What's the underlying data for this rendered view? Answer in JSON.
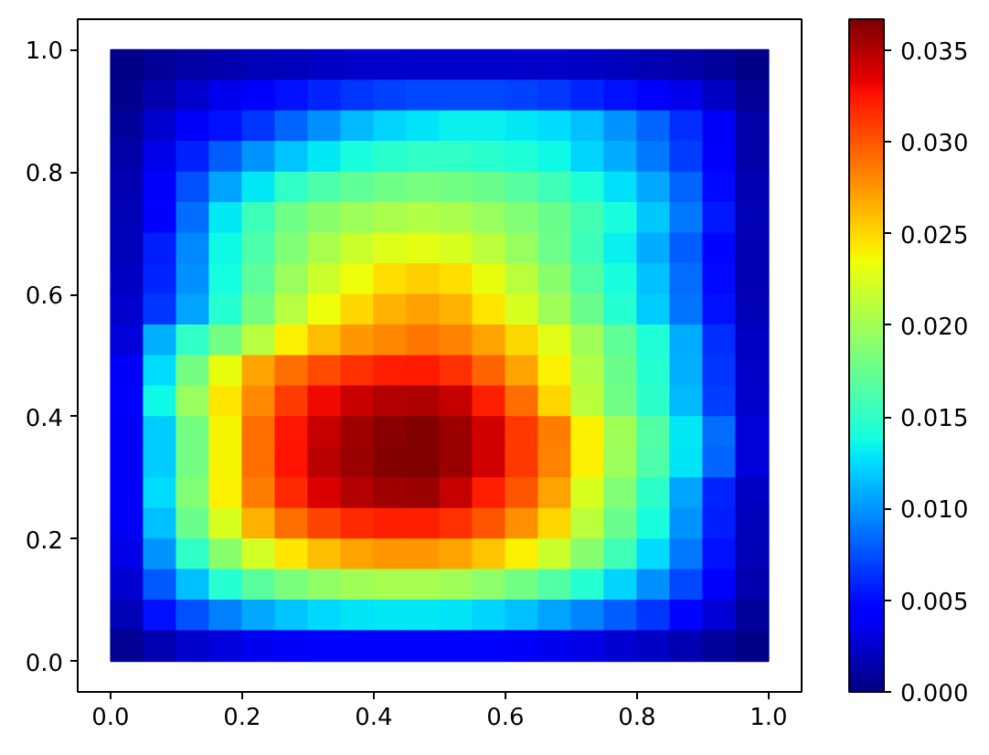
{
  "chart_data": {
    "type": "heatmap",
    "x": [
      0.025,
      0.075,
      0.125,
      0.175,
      0.225,
      0.275,
      0.325,
      0.375,
      0.425,
      0.475,
      0.525,
      0.575,
      0.625,
      0.675,
      0.725,
      0.775,
      0.825,
      0.875,
      0.925,
      0.975
    ],
    "y": [
      0.975,
      0.925,
      0.875,
      0.825,
      0.775,
      0.725,
      0.675,
      0.625,
      0.575,
      0.525,
      0.475,
      0.425,
      0.375,
      0.325,
      0.275,
      0.225,
      0.175,
      0.125,
      0.075,
      0.025
    ],
    "cells": [
      [
        0.0003,
        0.0008,
        0.0012,
        0.0015,
        0.0018,
        0.002,
        0.0022,
        0.0023,
        0.0024,
        0.0025,
        0.0025,
        0.0025,
        0.0024,
        0.0023,
        0.0022,
        0.002,
        0.0017,
        0.0013,
        0.0009,
        0.0003
      ],
      [
        0.0005,
        0.0015,
        0.0025,
        0.0035,
        0.0045,
        0.0052,
        0.006,
        0.0065,
        0.007,
        0.0072,
        0.0073,
        0.0072,
        0.007,
        0.0066,
        0.006,
        0.0053,
        0.0045,
        0.0035,
        0.0022,
        0.0008
      ],
      [
        0.001,
        0.0025,
        0.004,
        0.0052,
        0.0065,
        0.0082,
        0.0098,
        0.0112,
        0.0122,
        0.0128,
        0.0132,
        0.0132,
        0.013,
        0.0125,
        0.0115,
        0.01,
        0.0083,
        0.0063,
        0.004,
        0.0013
      ],
      [
        0.0013,
        0.0035,
        0.0058,
        0.008,
        0.01,
        0.0117,
        0.013,
        0.014,
        0.0147,
        0.015,
        0.015,
        0.0147,
        0.0142,
        0.0135,
        0.0123,
        0.0108,
        0.009,
        0.0068,
        0.0042,
        0.0014
      ],
      [
        0.0016,
        0.0043,
        0.0075,
        0.0105,
        0.013,
        0.015,
        0.0163,
        0.0172,
        0.0178,
        0.0181,
        0.018,
        0.0175,
        0.0167,
        0.0157,
        0.0143,
        0.0127,
        0.0107,
        0.0082,
        0.005,
        0.0017
      ],
      [
        0.0018,
        0.0045,
        0.0085,
        0.013,
        0.0155,
        0.0178,
        0.019,
        0.0198,
        0.0204,
        0.0207,
        0.0204,
        0.0196,
        0.0186,
        0.0175,
        0.0158,
        0.014,
        0.0118,
        0.009,
        0.0055,
        0.0018
      ],
      [
        0.002,
        0.0057,
        0.0095,
        0.0135,
        0.0163,
        0.0186,
        0.0205,
        0.0218,
        0.0227,
        0.023,
        0.0225,
        0.0212,
        0.0195,
        0.0177,
        0.0155,
        0.0133,
        0.0108,
        0.008,
        0.0048,
        0.0016
      ],
      [
        0.0022,
        0.006,
        0.0098,
        0.0138,
        0.017,
        0.0197,
        0.0218,
        0.0235,
        0.0247,
        0.0253,
        0.0248,
        0.0232,
        0.0212,
        0.019,
        0.0165,
        0.014,
        0.0115,
        0.0085,
        0.005,
        0.0017
      ],
      [
        0.0025,
        0.0065,
        0.0105,
        0.0145,
        0.018,
        0.021,
        0.0235,
        0.025,
        0.0265,
        0.0272,
        0.0265,
        0.0245,
        0.0225,
        0.02,
        0.0175,
        0.0145,
        0.012,
        0.0088,
        0.0052,
        0.0018
      ],
      [
        0.003,
        0.011,
        0.015,
        0.018,
        0.021,
        0.024,
        0.026,
        0.0275,
        0.0282,
        0.0287,
        0.0283,
        0.027,
        0.025,
        0.0228,
        0.02,
        0.0172,
        0.0143,
        0.0108,
        0.0062,
        0.0022
      ],
      [
        0.004,
        0.0125,
        0.018,
        0.0232,
        0.027,
        0.029,
        0.0305,
        0.0315,
        0.0322,
        0.0323,
        0.0315,
        0.0295,
        0.027,
        0.024,
        0.0207,
        0.0175,
        0.0145,
        0.011,
        0.0065,
        0.0024
      ],
      [
        0.0042,
        0.0135,
        0.0195,
        0.0245,
        0.028,
        0.031,
        0.033,
        0.0343,
        0.035,
        0.0352,
        0.0345,
        0.0322,
        0.0292,
        0.025,
        0.0212,
        0.0178,
        0.0148,
        0.0112,
        0.0068,
        0.0025
      ],
      [
        0.004,
        0.012,
        0.018,
        0.0238,
        0.029,
        0.0325,
        0.0345,
        0.0356,
        0.0364,
        0.0366,
        0.0358,
        0.034,
        0.0312,
        0.0285,
        0.024,
        0.02,
        0.0165,
        0.013,
        0.0085,
        0.003
      ],
      [
        0.004,
        0.012,
        0.018,
        0.0238,
        0.029,
        0.0326,
        0.0347,
        0.0358,
        0.0365,
        0.0366,
        0.0358,
        0.034,
        0.0312,
        0.0283,
        0.024,
        0.0198,
        0.0162,
        0.0128,
        0.0083,
        0.003
      ],
      [
        0.004,
        0.0125,
        0.0185,
        0.024,
        0.0285,
        0.0318,
        0.0338,
        0.035,
        0.0356,
        0.0357,
        0.0345,
        0.0322,
        0.03,
        0.027,
        0.0225,
        0.0185,
        0.0148,
        0.0105,
        0.006,
        0.0022
      ],
      [
        0.0038,
        0.0115,
        0.0175,
        0.0225,
        0.0265,
        0.029,
        0.0308,
        0.0318,
        0.0322,
        0.0322,
        0.0315,
        0.03,
        0.0278,
        0.025,
        0.0212,
        0.0175,
        0.014,
        0.01,
        0.0057,
        0.002
      ],
      [
        0.0033,
        0.01,
        0.015,
        0.019,
        0.0222,
        0.0245,
        0.026,
        0.027,
        0.0275,
        0.0275,
        0.027,
        0.0258,
        0.024,
        0.0218,
        0.0188,
        0.0157,
        0.0125,
        0.009,
        0.0052,
        0.0018
      ],
      [
        0.0026,
        0.0078,
        0.0115,
        0.0145,
        0.0168,
        0.0183,
        0.0193,
        0.02,
        0.0203,
        0.0203,
        0.02,
        0.0192,
        0.018,
        0.0165,
        0.0145,
        0.0122,
        0.0098,
        0.0072,
        0.0042,
        0.0015
      ],
      [
        0.0018,
        0.0052,
        0.0075,
        0.0093,
        0.0107,
        0.0117,
        0.0124,
        0.0128,
        0.013,
        0.013,
        0.0128,
        0.0123,
        0.0116,
        0.0106,
        0.0094,
        0.008,
        0.0065,
        0.0048,
        0.0028,
        0.001
      ],
      [
        0.0006,
        0.0017,
        0.0025,
        0.0031,
        0.0036,
        0.0039,
        0.0041,
        0.0043,
        0.0044,
        0.0044,
        0.0043,
        0.0041,
        0.0039,
        0.0036,
        0.0032,
        0.0027,
        0.0022,
        0.0016,
        0.0009,
        0.0003
      ]
    ],
    "clim": [
      0,
      0.0367
    ],
    "cticks": [
      {
        "value": 0,
        "label": "0.000"
      },
      0.005,
      {
        "value": 0.01,
        "label": "0.010"
      },
      0.015,
      {
        "value": 0.02,
        "label": "0.020"
      },
      0.025,
      {
        "value": 0.03,
        "label": "0.030"
      },
      0.035
    ],
    "xlim": [
      -0.05,
      1.05
    ],
    "xticks": [
      {
        "value": 0,
        "label": "0.0"
      },
      0.2,
      0.4,
      0.6,
      0.8,
      {
        "value": 1,
        "label": "1.0"
      }
    ],
    "ylim": [
      -0.05,
      1.05
    ],
    "yticks": [
      {
        "value": 0,
        "label": "0.0"
      },
      0.2,
      0.4,
      0.6,
      0.8,
      {
        "value": 1,
        "label": "1.0"
      }
    ]
  }
}
